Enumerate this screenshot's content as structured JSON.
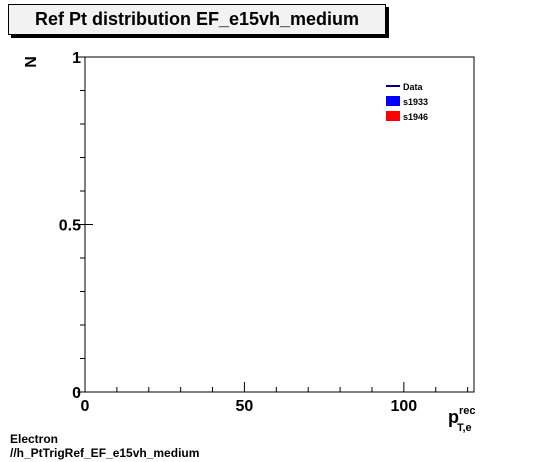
{
  "chart_data": {
    "type": "line",
    "title": "Ref Pt distribution EF_e15vh_medium",
    "xlabel": "p",
    "xlabel_sup": "rec",
    "xlabel_sub": "T,e",
    "ylabel": "N",
    "xlim": [
      0,
      122
    ],
    "ylim": [
      0,
      1
    ],
    "x_ticks": [
      0,
      50,
      100
    ],
    "x_tick_labels": [
      "0",
      "50",
      "100"
    ],
    "y_ticks": [
      0,
      0.5,
      1
    ],
    "y_tick_labels": [
      "0",
      "0.5",
      "1"
    ],
    "grid": false,
    "legend_position": "top-right",
    "series": [
      {
        "name": "Data",
        "style": "line",
        "color": "#000080",
        "values": []
      },
      {
        "name": "s1933",
        "style": "fill",
        "color": "#0000ff",
        "values": []
      },
      {
        "name": "s1946",
        "style": "fill",
        "color": "#ff0000",
        "values": []
      }
    ]
  },
  "footer": {
    "line1": "Electron",
    "line2": "//h_PtTrigRef_EF_e15vh_medium"
  }
}
